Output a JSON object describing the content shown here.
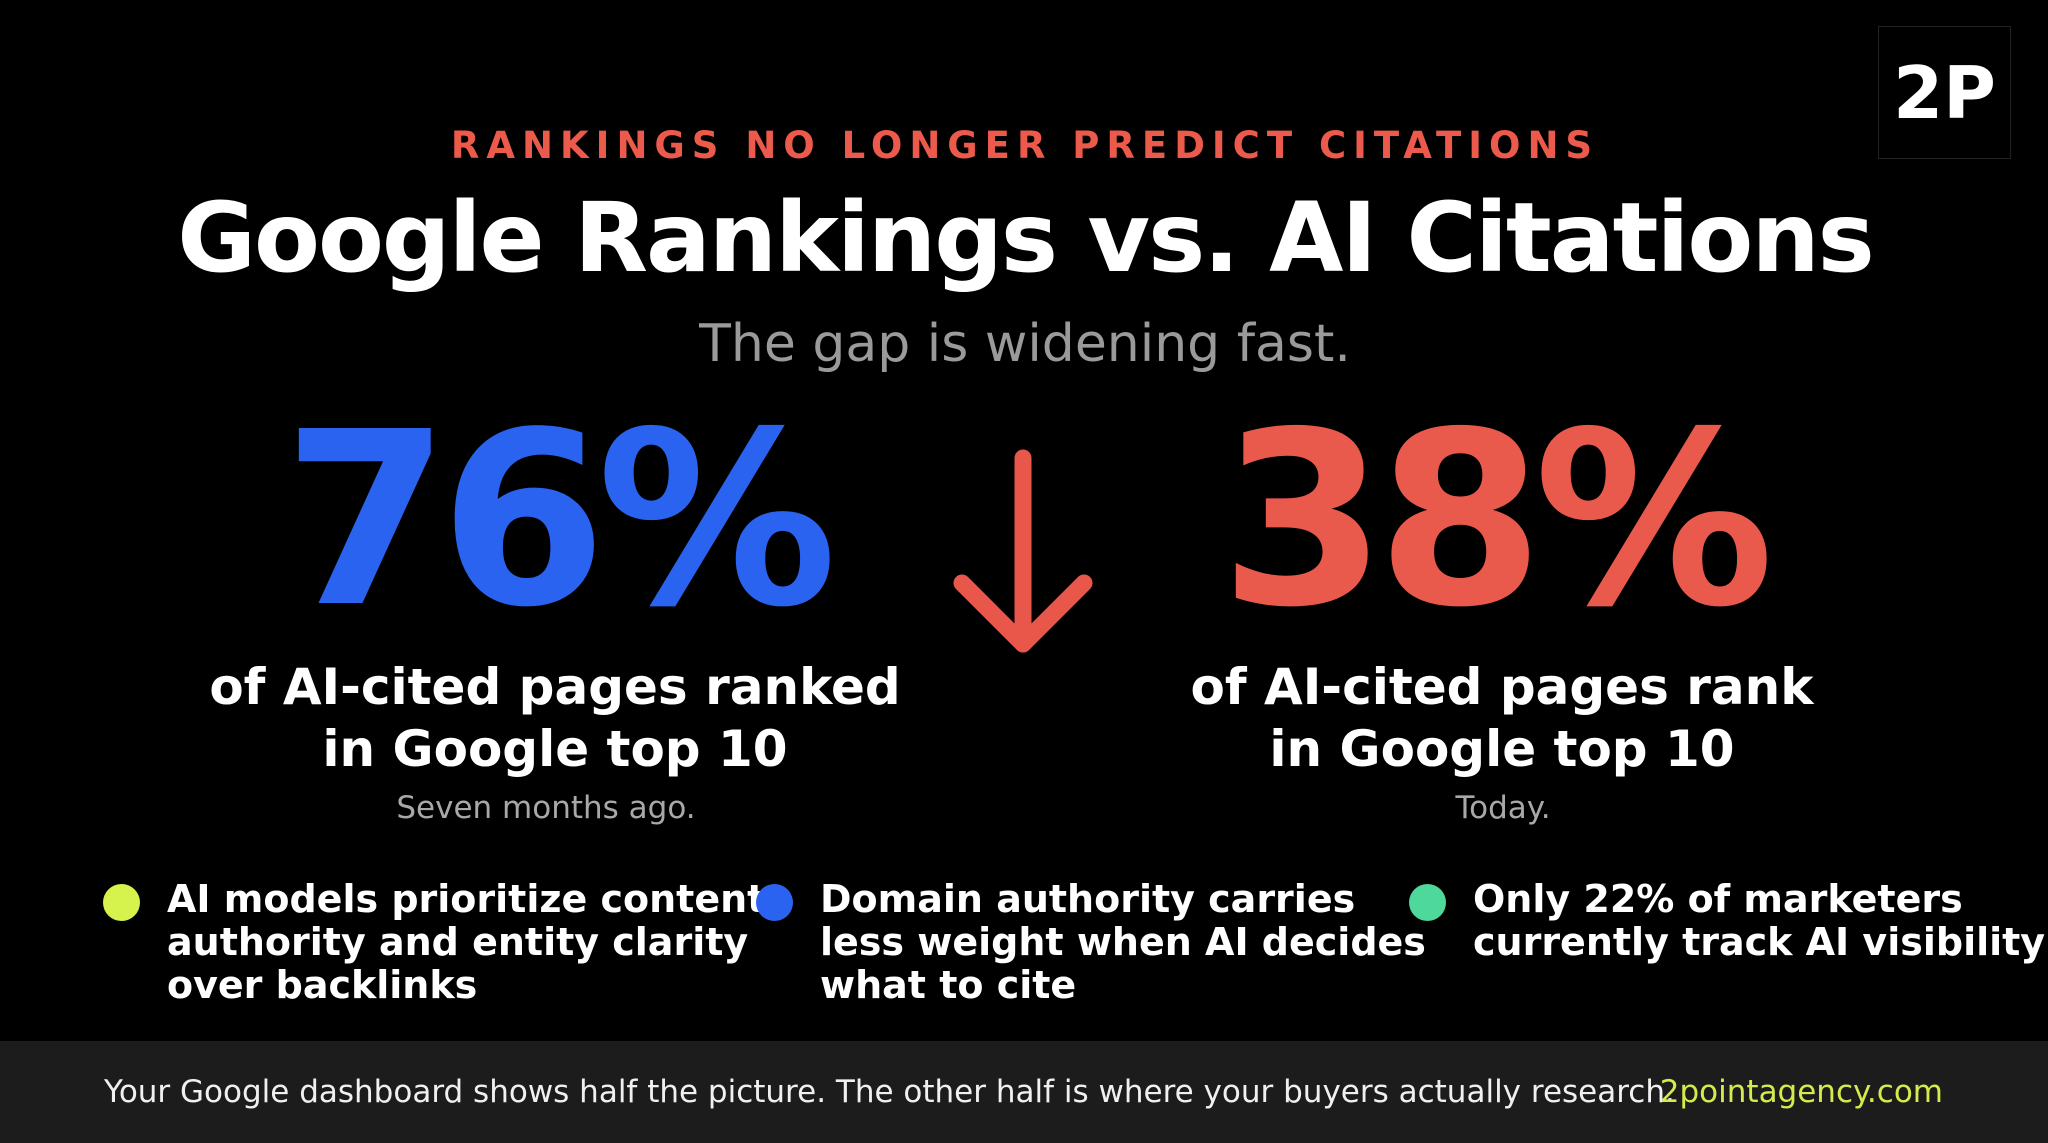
{
  "logo": "2P",
  "eyebrow": "RANKINGS NO LONGER PREDICT CITATIONS",
  "title": "Google Rankings vs. AI Citations",
  "subtitle": "The gap is widening fast.",
  "stats": [
    {
      "value": "76%",
      "lines": [
        "of AI-cited pages ranked",
        "in Google top 10"
      ],
      "note": "Seven months ago."
    },
    {
      "value": "38%",
      "lines": [
        "of AI-cited pages rank",
        "in Google top 10"
      ],
      "note": "Today."
    }
  ],
  "bullets": [
    {
      "lines": [
        "AI models prioritize content",
        "authority and entity clarity",
        "over backlinks"
      ]
    },
    {
      "lines": [
        "Domain authority carries",
        "less weight when AI decides",
        "what to cite"
      ]
    },
    {
      "lines": [
        "Only 22% of marketers",
        "currently track AI visibility"
      ]
    }
  ],
  "footer": {
    "text": "Your Google dashboard shows half the picture. The other half is where your buyers actually research.",
    "link": "2pointagency.com"
  }
}
